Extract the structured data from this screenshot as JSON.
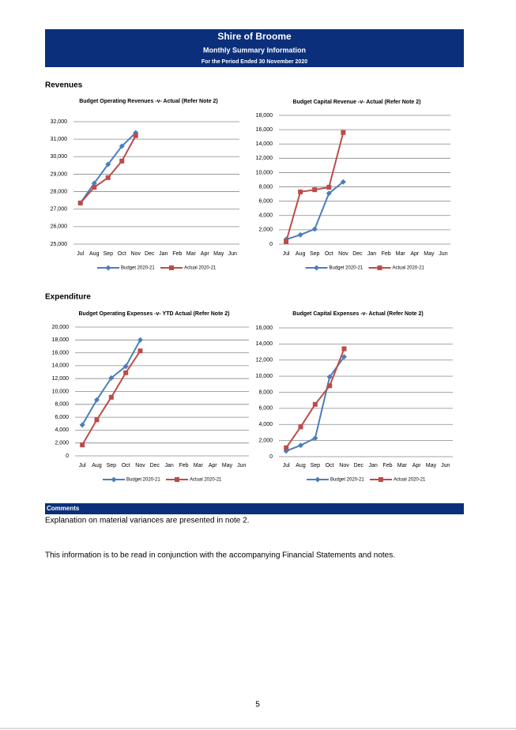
{
  "header": {
    "title": "Shire of Broome",
    "subtitle": "Monthly Summary Information",
    "period": "For the Period Ended 30 November 2020"
  },
  "sections": [
    "Revenues",
    "Expenditure"
  ],
  "chart_data": [
    {
      "type": "line",
      "title": "Budget Operating Revenues -v- Actual (Refer Note 2)",
      "categories": [
        "Jul",
        "Aug",
        "Sep",
        "Oct",
        "Nov",
        "Dec",
        "Jan",
        "Feb",
        "Mar",
        "Apr",
        "May",
        "Jun"
      ],
      "series": [
        {
          "name": "Budget 2020-21",
          "color": "#4a7ebb",
          "values": [
            27350,
            28480,
            29560,
            30600,
            31370,
            null,
            null,
            null,
            null,
            null,
            null,
            null
          ]
        },
        {
          "name": "Actual 2020-21",
          "color": "#be4b48",
          "values": [
            27350,
            28250,
            28800,
            29750,
            31200,
            null,
            null,
            null,
            null,
            null,
            null,
            null
          ]
        }
      ],
      "ylim": [
        25000,
        32000
      ],
      "yticks": [
        {
          "value": 25000,
          "label": "25,000"
        },
        {
          "value": 26000,
          "label": "26,000"
        },
        {
          "value": 27000,
          "label": "27,000"
        },
        {
          "value": 28000,
          "label": "28,000"
        },
        {
          "value": 29000,
          "label": "29,000"
        },
        {
          "value": 30000,
          "label": "30,000"
        },
        {
          "value": 31000,
          "label": "31,000"
        },
        {
          "value": 32000,
          "label": "32,000"
        }
      ],
      "grid": true,
      "legend": "bottom"
    },
    {
      "type": "line",
      "title": "Budget Capital Revenue -v- Actual (Refer Note 2)",
      "categories": [
        "Jul",
        "Aug",
        "Sep",
        "Oct",
        "Nov",
        "Dec",
        "Jan",
        "Feb",
        "Mar",
        "Apr",
        "May",
        "Jun"
      ],
      "series": [
        {
          "name": "Budget 2020-21",
          "color": "#4a7ebb",
          "values": [
            660,
            1300,
            2100,
            7100,
            8700,
            null,
            null,
            null,
            null,
            null,
            null,
            null
          ]
        },
        {
          "name": "Actual 2020-21",
          "color": "#be4b48",
          "values": [
            330,
            7300,
            7600,
            7950,
            15600,
            null,
            null,
            null,
            null,
            null,
            null,
            null
          ]
        }
      ],
      "ylim": [
        0,
        18000
      ],
      "yticks": [
        0,
        {
          "value": 2000,
          "label": "2,000"
        },
        {
          "value": 4000,
          "label": "4,000"
        },
        {
          "value": 6000,
          "label": "6,000"
        },
        {
          "value": 8000,
          "label": "8,000"
        },
        {
          "value": 10000,
          "label": "10,000"
        },
        {
          "value": 12000,
          "label": "12,000"
        },
        {
          "value": 14000,
          "label": "14,000"
        },
        {
          "value": 16000,
          "label": "16,000"
        },
        {
          "value": 18000,
          "label": "18,000"
        }
      ],
      "grid": true,
      "legend": "bottom"
    },
    {
      "type": "line",
      "title": "Budget Operating Expenses -v- YTD Actual (Refer Note 2)",
      "categories": [
        "Jul",
        "Aug",
        "Sep",
        "Oct",
        "Nov",
        "Dec",
        "Jan",
        "Feb",
        "Mar",
        "Apr",
        "May",
        "Jun"
      ],
      "series": [
        {
          "name": "Budget 2020-21",
          "color": "#4a7ebb",
          "values": [
            4800,
            8700,
            12100,
            13900,
            18000,
            null,
            null,
            null,
            null,
            null,
            null,
            null
          ]
        },
        {
          "name": "Actual 2020-21",
          "color": "#be4b48",
          "values": [
            1700,
            5600,
            9100,
            12900,
            16300,
            null,
            null,
            null,
            null,
            null,
            null,
            null
          ]
        }
      ],
      "ylim": [
        0,
        20000
      ],
      "yticks": [
        0,
        {
          "value": 2000,
          "label": "2,000"
        },
        {
          "value": 4000,
          "label": "4,000"
        },
        {
          "value": 6000,
          "label": "6,000"
        },
        {
          "value": 8000,
          "label": "8,000"
        },
        {
          "value": 10000,
          "label": "10,000"
        },
        {
          "value": 12000,
          "label": "12,000"
        },
        {
          "value": 14000,
          "label": "14,000"
        },
        {
          "value": 16000,
          "label": "16,000"
        },
        {
          "value": 18000,
          "label": "18,000"
        },
        {
          "value": 20000,
          "label": "20,000"
        }
      ],
      "grid": true,
      "legend": "bottom"
    },
    {
      "type": "line",
      "title": "Budget Capital Expenses -v- Actual (Refer Note 2)",
      "categories": [
        "Jul",
        "Aug",
        "Sep",
        "Oct",
        "Nov",
        "Dec",
        "Jan",
        "Feb",
        "Mar",
        "Apr",
        "May",
        "Jun"
      ],
      "series": [
        {
          "name": "Budget 2020-21",
          "color": "#4a7ebb",
          "values": [
            700,
            1400,
            2300,
            9900,
            12400,
            null,
            null,
            null,
            null,
            null,
            null,
            null
          ]
        },
        {
          "name": "Actual 2020-21",
          "color": "#be4b48",
          "values": [
            1100,
            3700,
            6500,
            8800,
            13400,
            null,
            null,
            null,
            null,
            null,
            null,
            null
          ]
        }
      ],
      "ylim": [
        0,
        16000
      ],
      "yticks": [
        0,
        {
          "value": 2000,
          "label": "2,000"
        },
        {
          "value": 4000,
          "label": "4,000"
        },
        {
          "value": 6000,
          "label": "6,000"
        },
        {
          "value": 8000,
          "label": "8,000"
        },
        {
          "value": 10000,
          "label": "10,000"
        },
        {
          "value": 12000,
          "label": "12,000"
        },
        {
          "value": 14000,
          "label": "14,000"
        },
        {
          "value": 16000,
          "label": "16,000"
        }
      ],
      "grid": true,
      "legend": "bottom"
    }
  ],
  "comments": {
    "heading": "Comments",
    "text": "Explanation on material variances are presented in note 2.",
    "note": "This information is to be read in conjunction with the accompanying Financial Statements and notes."
  },
  "page_number": "5"
}
